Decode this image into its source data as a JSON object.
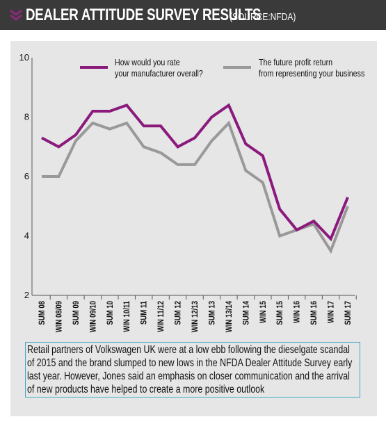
{
  "header": {
    "title": "DEALER ATTITUDE SURVEY RESULTS",
    "source": "(SOURCE:NFDA)",
    "icon": "double-chevron-down-icon",
    "bg_color": "#3a3a3a",
    "accent_color": "#8b2a7c"
  },
  "chart_data": {
    "type": "line",
    "categories": [
      "SUM 08",
      "WIN 08/09",
      "SUM 09",
      "WIN 09/10",
      "SUM 10",
      "WIN 10/11",
      "SUM 11",
      "WIN 11/12",
      "SUM 12",
      "WIN 12/13",
      "SUM 13",
      "WIN 13/14",
      "SUM 14",
      "WIN 15",
      "SUM 15",
      "WIN 16",
      "SUM 16",
      "WIN 17",
      "SUM 17"
    ],
    "series": [
      {
        "name": "How would you rate your manufacturer overall?",
        "color": "#8b1a7d",
        "values": [
          7.3,
          7.0,
          7.4,
          8.2,
          8.2,
          8.4,
          7.7,
          7.7,
          7.0,
          7.3,
          8.0,
          8.4,
          7.1,
          6.7,
          4.9,
          4.2,
          4.5,
          3.9,
          5.3
        ]
      },
      {
        "name": "The future profit return from representing your business",
        "color": "#999999",
        "values": [
          6.0,
          6.0,
          7.2,
          7.8,
          7.6,
          7.8,
          7.0,
          6.8,
          6.4,
          6.4,
          7.2,
          7.8,
          6.2,
          5.8,
          4.0,
          4.2,
          4.4,
          3.5,
          5.0
        ]
      }
    ],
    "yticks": [
      2,
      4,
      6,
      8,
      10
    ],
    "ylim": [
      2,
      10
    ],
    "grid": false,
    "legend_position": "top"
  },
  "caption": "Retail partners of Volkswagen UK were at a low ebb following the dieselgate scandal of 2015 and the brand slumped to new lows in the NFDA Dealer Attitude Survey early last year. However, Jones said an emphasis on closer communication and the arrival of new products have helped to create a more positive outlook"
}
